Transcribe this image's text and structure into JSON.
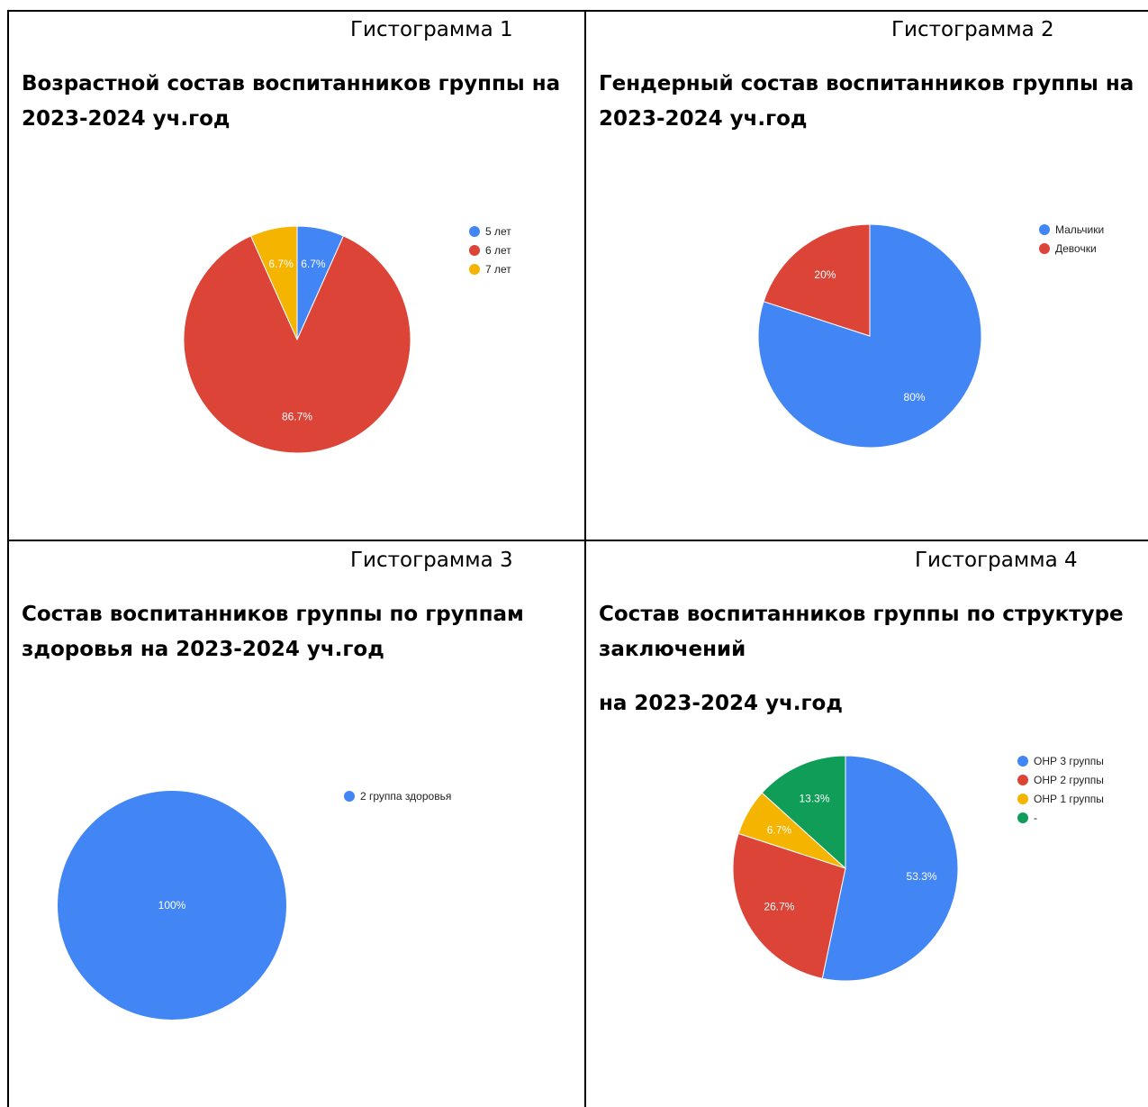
{
  "cells": [
    {
      "caption": "Гистограмма 1",
      "title_lines": [
        "Возрастной состав воспитанников группы  на",
        "2023-2024 уч.год"
      ]
    },
    {
      "caption": "Гистограмма 2",
      "title_lines": [
        "Гендерный состав воспитанников группы на",
        "2023-2024 уч.год"
      ]
    },
    {
      "caption": "Гистограмма 3",
      "title_lines": [
        "Состав воспитанников группы по группам",
        "здоровья на 2023-2024 уч.год"
      ]
    },
    {
      "caption": "Гистограмма 4",
      "title_lines": [
        "Состав воспитанников группы по структуре",
        "заключений",
        "на 2023-2024 уч.год"
      ]
    }
  ],
  "chart_data": [
    {
      "type": "pie",
      "title": "",
      "legend_position": "right",
      "series": [
        {
          "name": "5 лет",
          "value": 6.7,
          "label": "6.7%",
          "color": "#4285f4"
        },
        {
          "name": "6 лет",
          "value": 86.7,
          "label": "86.7%",
          "color": "#db4437"
        },
        {
          "name": "7 лет",
          "value": 6.7,
          "label": "6.7%",
          "color": "#f4b400"
        }
      ]
    },
    {
      "type": "pie",
      "title": "",
      "legend_position": "right",
      "series": [
        {
          "name": "Мальчики",
          "value": 80,
          "label": "80%",
          "color": "#4285f4"
        },
        {
          "name": "Девочки",
          "value": 20,
          "label": "20%",
          "color": "#db4437"
        }
      ]
    },
    {
      "type": "pie",
      "title": "",
      "legend_position": "right",
      "series": [
        {
          "name": "2 группа здоровья",
          "value": 100,
          "label": "100%",
          "color": "#4285f4"
        }
      ]
    },
    {
      "type": "pie",
      "title": "",
      "legend_position": "right",
      "series": [
        {
          "name": "ОНР 3 группы",
          "value": 53.3,
          "label": "53.3%",
          "color": "#4285f4"
        },
        {
          "name": "ОНР 2 группы",
          "value": 26.7,
          "label": "26.7%",
          "color": "#db4437"
        },
        {
          "name": "ОНР 1 группы",
          "value": 6.7,
          "label": "6.7%",
          "color": "#f4b400"
        },
        {
          "name": "-",
          "value": 13.3,
          "label": "13.3%",
          "color": "#0f9d58"
        }
      ]
    }
  ]
}
